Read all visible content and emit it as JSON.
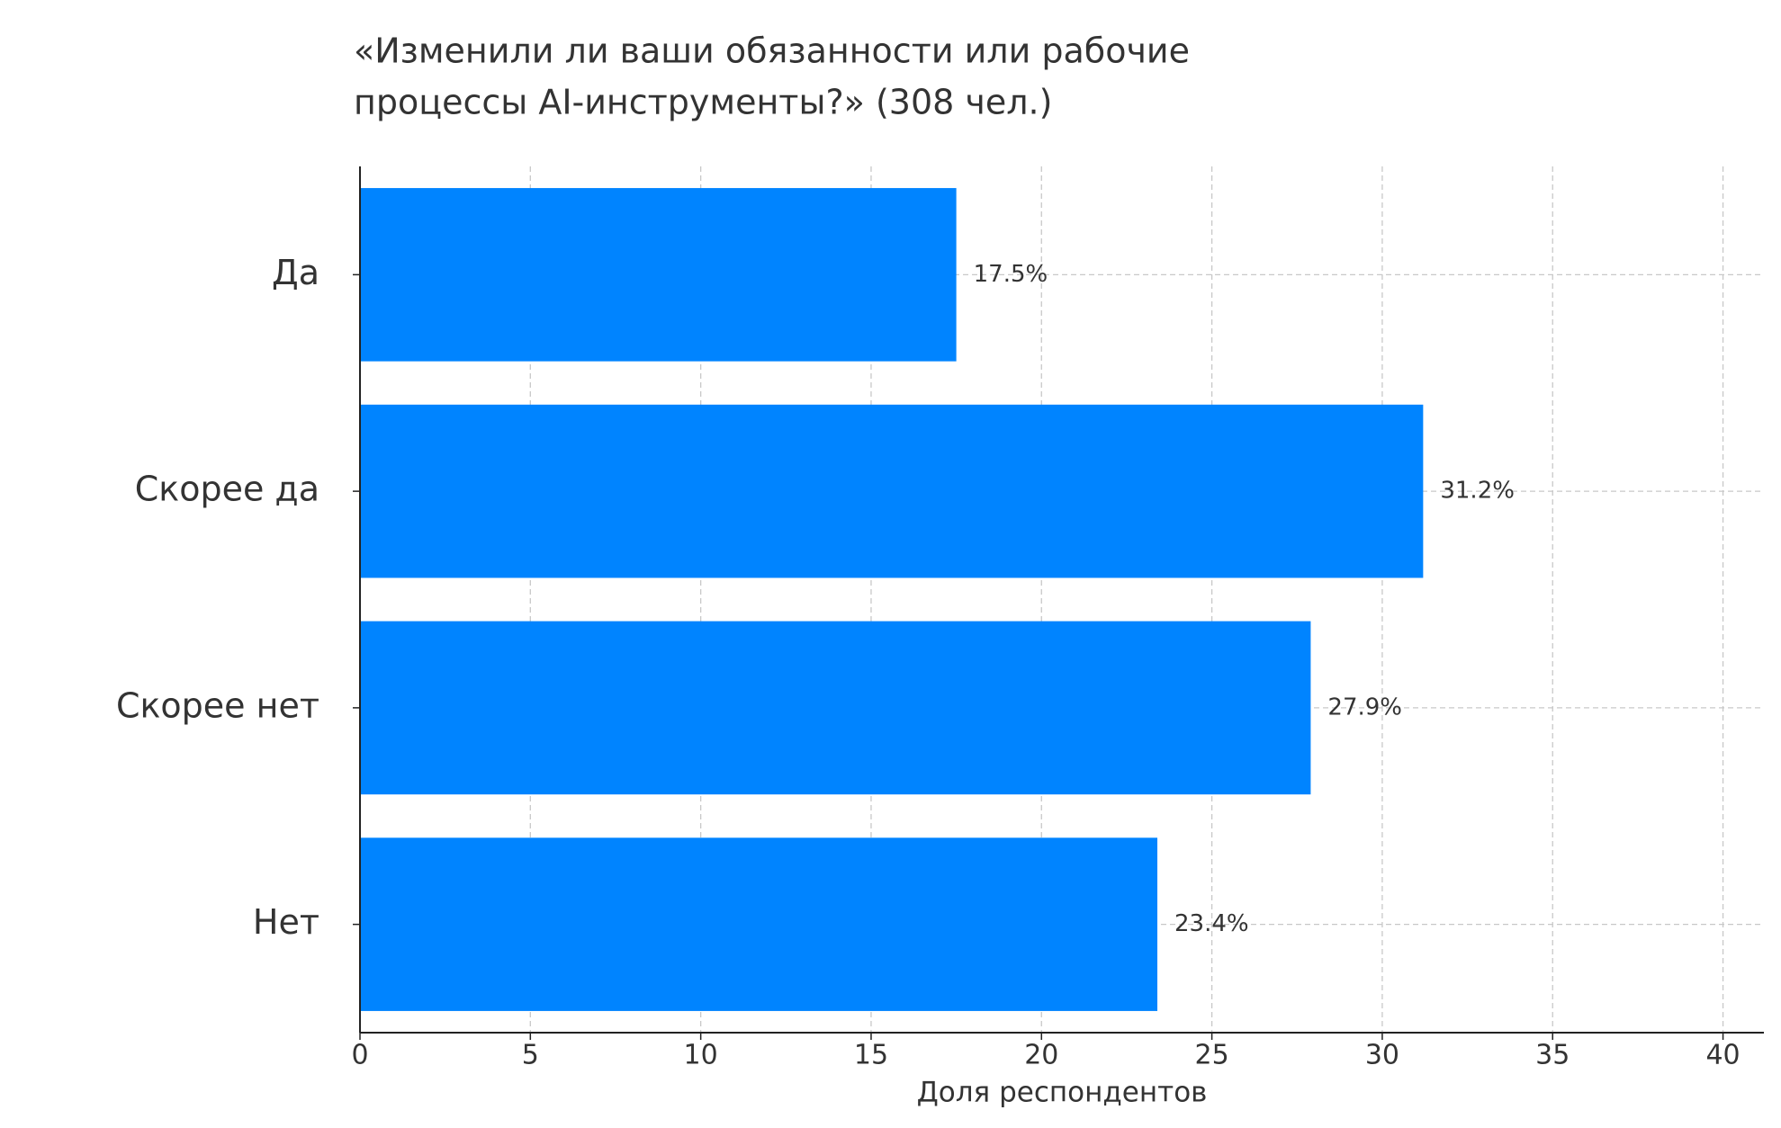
{
  "chart_data": {
    "type": "barh",
    "title": [
      "«Изменили ли ваши обязанности или рабочие",
      "процессы AI-инструменты?» (308 чел.)"
    ],
    "xlabel": "Доля респондентов",
    "categories": [
      "Да",
      "Скорее да",
      "Скорее нет",
      "Нет"
    ],
    "values": [
      17.5,
      31.2,
      27.9,
      23.4
    ],
    "value_labels": [
      "17.5%",
      "31.2%",
      "27.9%",
      "23.4%"
    ],
    "color": "#0084ff",
    "xlim": [
      0,
      41.2
    ],
    "xticks": [
      0,
      5,
      10,
      15,
      20,
      25,
      30,
      35,
      40
    ],
    "grid": true
  }
}
